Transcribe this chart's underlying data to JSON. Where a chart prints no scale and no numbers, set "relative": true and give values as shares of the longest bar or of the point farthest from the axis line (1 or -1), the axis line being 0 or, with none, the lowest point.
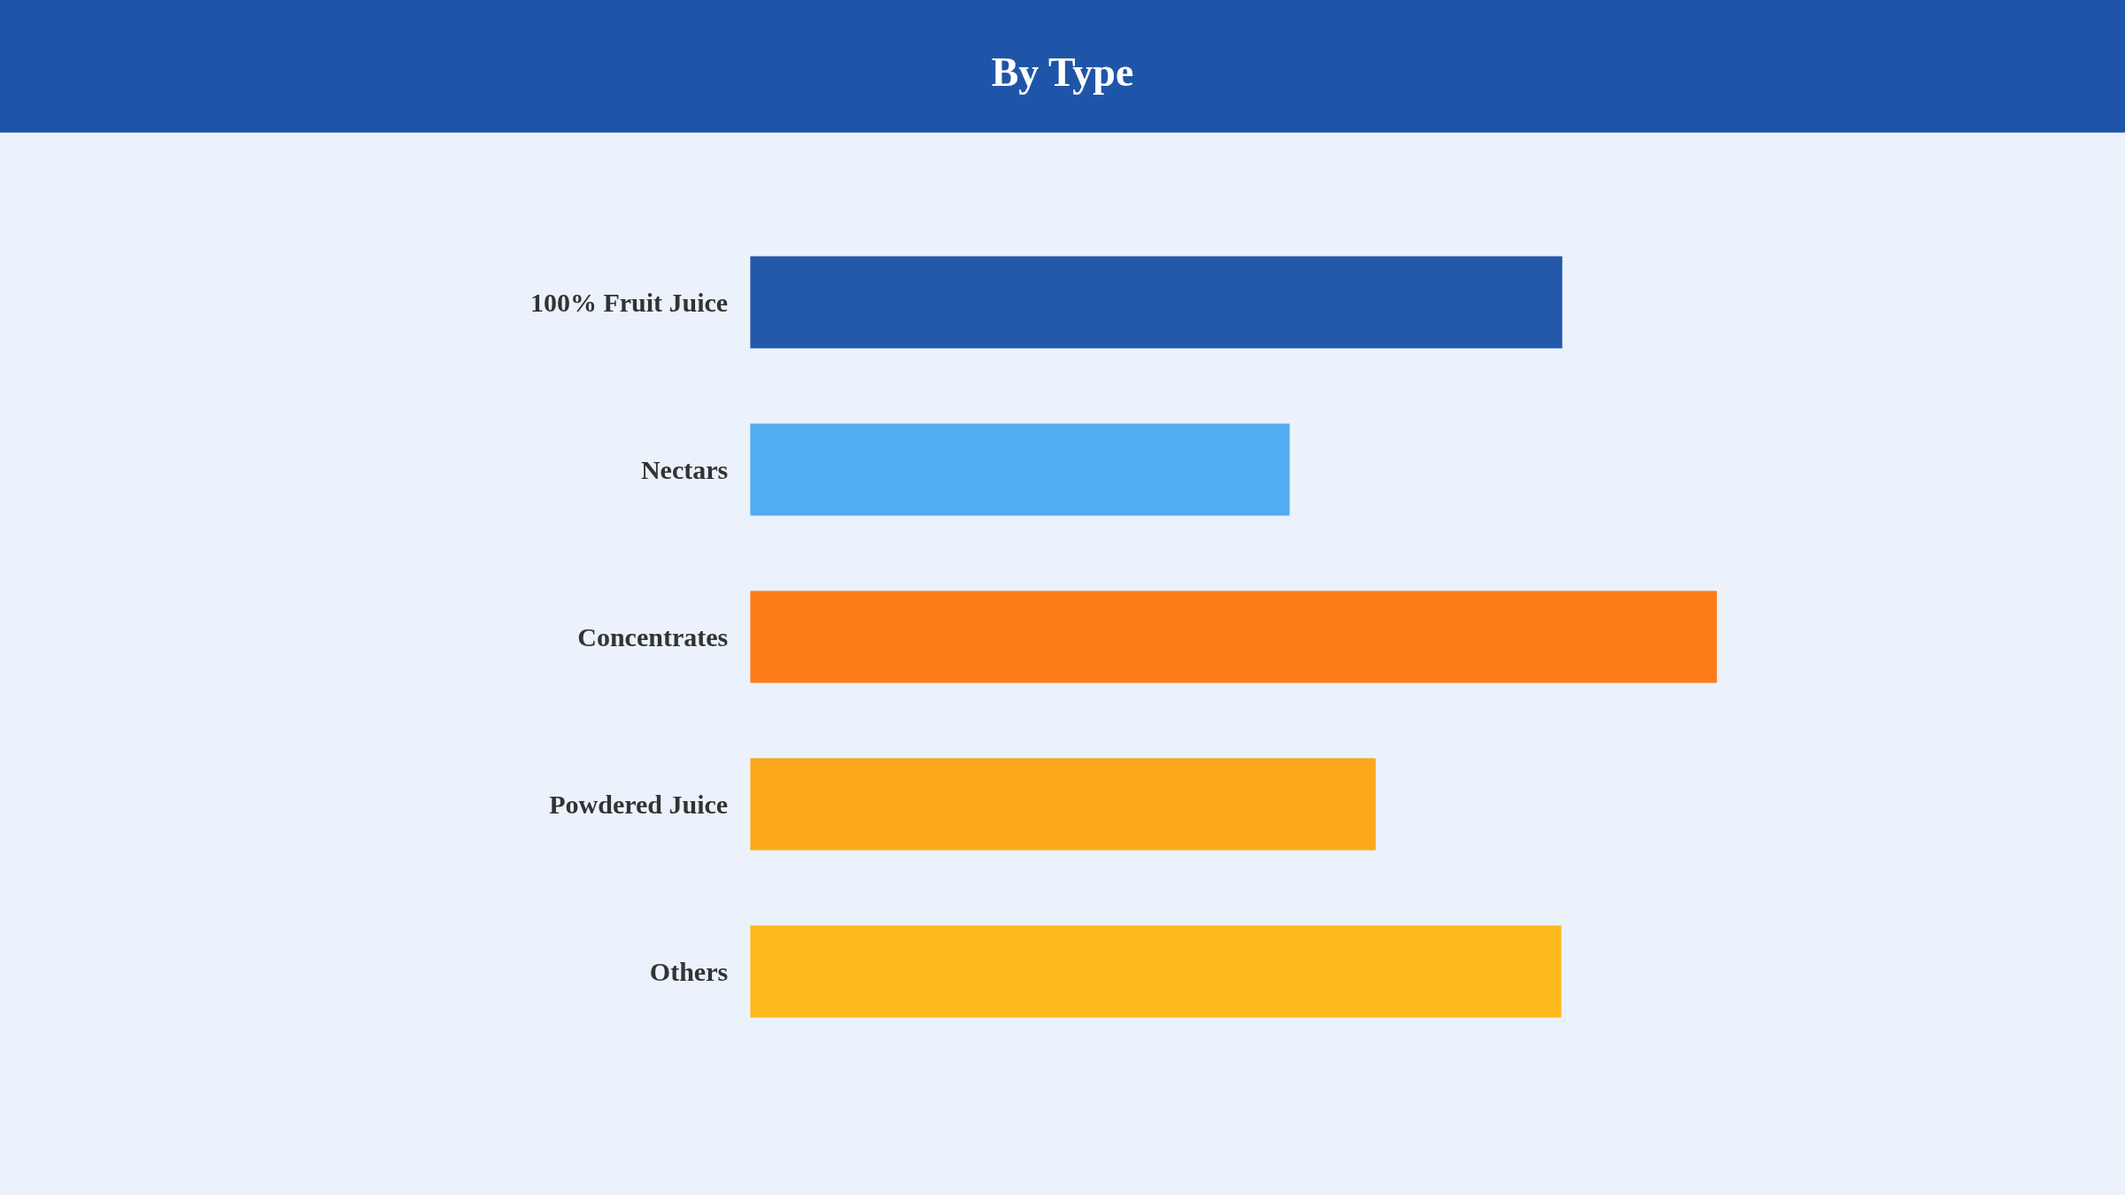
{
  "chart_data": {
    "type": "bar",
    "orientation": "horizontal",
    "relative": true,
    "title": "By Type",
    "categories": [
      "100% Fruit Juice",
      "Nectars",
      "Concentrates",
      "Powdered Juice",
      "Others"
    ],
    "values": [
      0.84,
      0.558,
      1,
      0.647,
      0.839
    ],
    "colors": [
      "#2458ab",
      "#52acf2",
      "#fd7c1a",
      "#fca81a",
      "#fdb81d"
    ],
    "grid": false
  }
}
